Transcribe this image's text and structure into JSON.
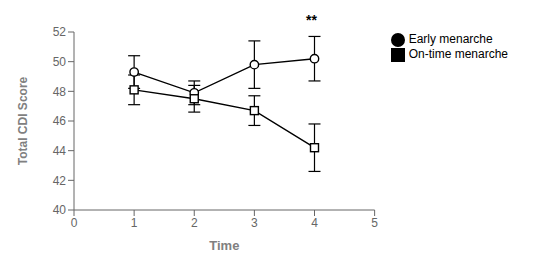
{
  "chart_data": {
    "type": "line",
    "x": [
      1,
      2,
      3,
      4
    ],
    "series": [
      {
        "name": "Early menarche",
        "color": "#000000",
        "marker": "circle",
        "line_style": "solid",
        "values": [
          49.3,
          47.9,
          49.8,
          50.2
        ],
        "yerr": [
          1.1,
          0.8,
          1.6,
          1.5
        ]
      },
      {
        "name": "On-time menarche",
        "color": "#000000",
        "marker": "square",
        "line_style": "solid",
        "values": [
          48.1,
          47.5,
          46.7,
          44.2
        ],
        "yerr": [
          1.0,
          0.9,
          1.0,
          1.6
        ]
      }
    ],
    "xlim": [
      0,
      5
    ],
    "xticks": [
      0,
      1,
      2,
      3,
      4,
      5
    ],
    "ylim": [
      40,
      52
    ],
    "yticks": [
      40,
      42,
      44,
      46,
      48,
      50,
      52
    ],
    "xlabel": "Time",
    "ylabel": "Total CDI Score",
    "annotations": [
      {
        "text": "**",
        "x": 3.95,
        "y": 52.05
      }
    ],
    "legend": "right",
    "grid": false
  }
}
